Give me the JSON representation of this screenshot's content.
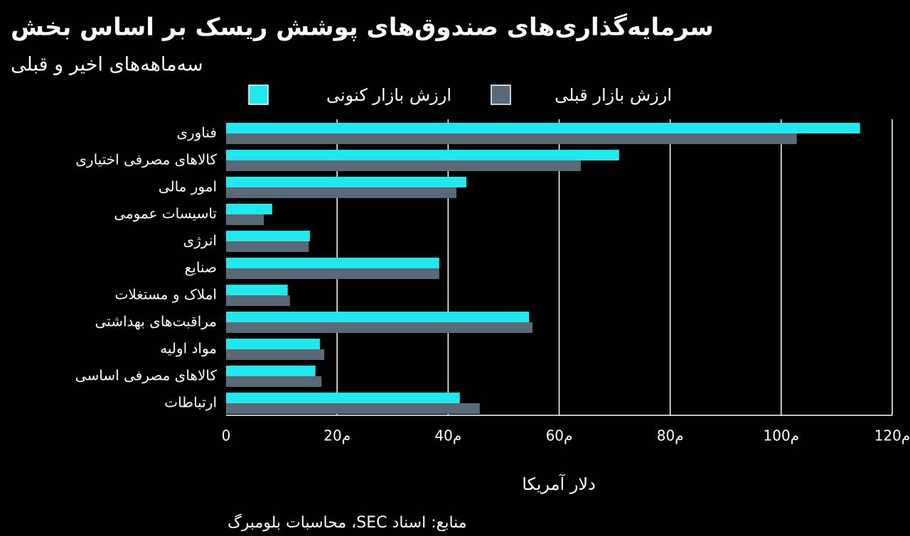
{
  "chart_data": {
    "type": "bar",
    "orientation": "horizontal",
    "title": "سرمایه‌گذاری‌های صندوق‌های پوشش ریسک بر اساس بخش",
    "subtitle": "سه‌ماهه‌های اخیر و قبلی",
    "x_label": "دلار آمریکا",
    "source": "منابع: اسناد SEC، محاسبات بلومبرگ",
    "categories": [
      "فناوری",
      "کالاهای مصرفی اختیاری",
      "امور مالی",
      "تاسیسات عمومی",
      "انرژی",
      "صنایع",
      "املاک و مستغلات",
      "مراقبت‌های بهداشتی",
      "مواد اولیه",
      "کالاهای مصرفی اساسی",
      "ارتباطات"
    ],
    "series": [
      {
        "name": "ارزش بازار کنونی",
        "color": "#1de9ef",
        "values": [
          114.2,
          70.8,
          43.3,
          8.3,
          15.1,
          38.4,
          11.1,
          54.6,
          16.9,
          16.1,
          42.1
        ]
      },
      {
        "name": "ارزش بازار قبلی",
        "color": "#586a77",
        "values": [
          102.8,
          63.9,
          41.5,
          6.8,
          14.9,
          38.4,
          11.5,
          55.2,
          17.7,
          17.2,
          45.7
        ]
      }
    ],
    "xlim": [
      0,
      120
    ],
    "xticks": [
      0,
      {
        "value": 20,
        "label": "20م"
      },
      {
        "value": 40,
        "label": "40م"
      },
      {
        "value": 60,
        "label": "60م"
      },
      {
        "value": 80,
        "label": "80م"
      },
      {
        "value": 100,
        "label": "100م"
      },
      {
        "value": 120,
        "label": "120م"
      }
    ],
    "grid": true
  }
}
